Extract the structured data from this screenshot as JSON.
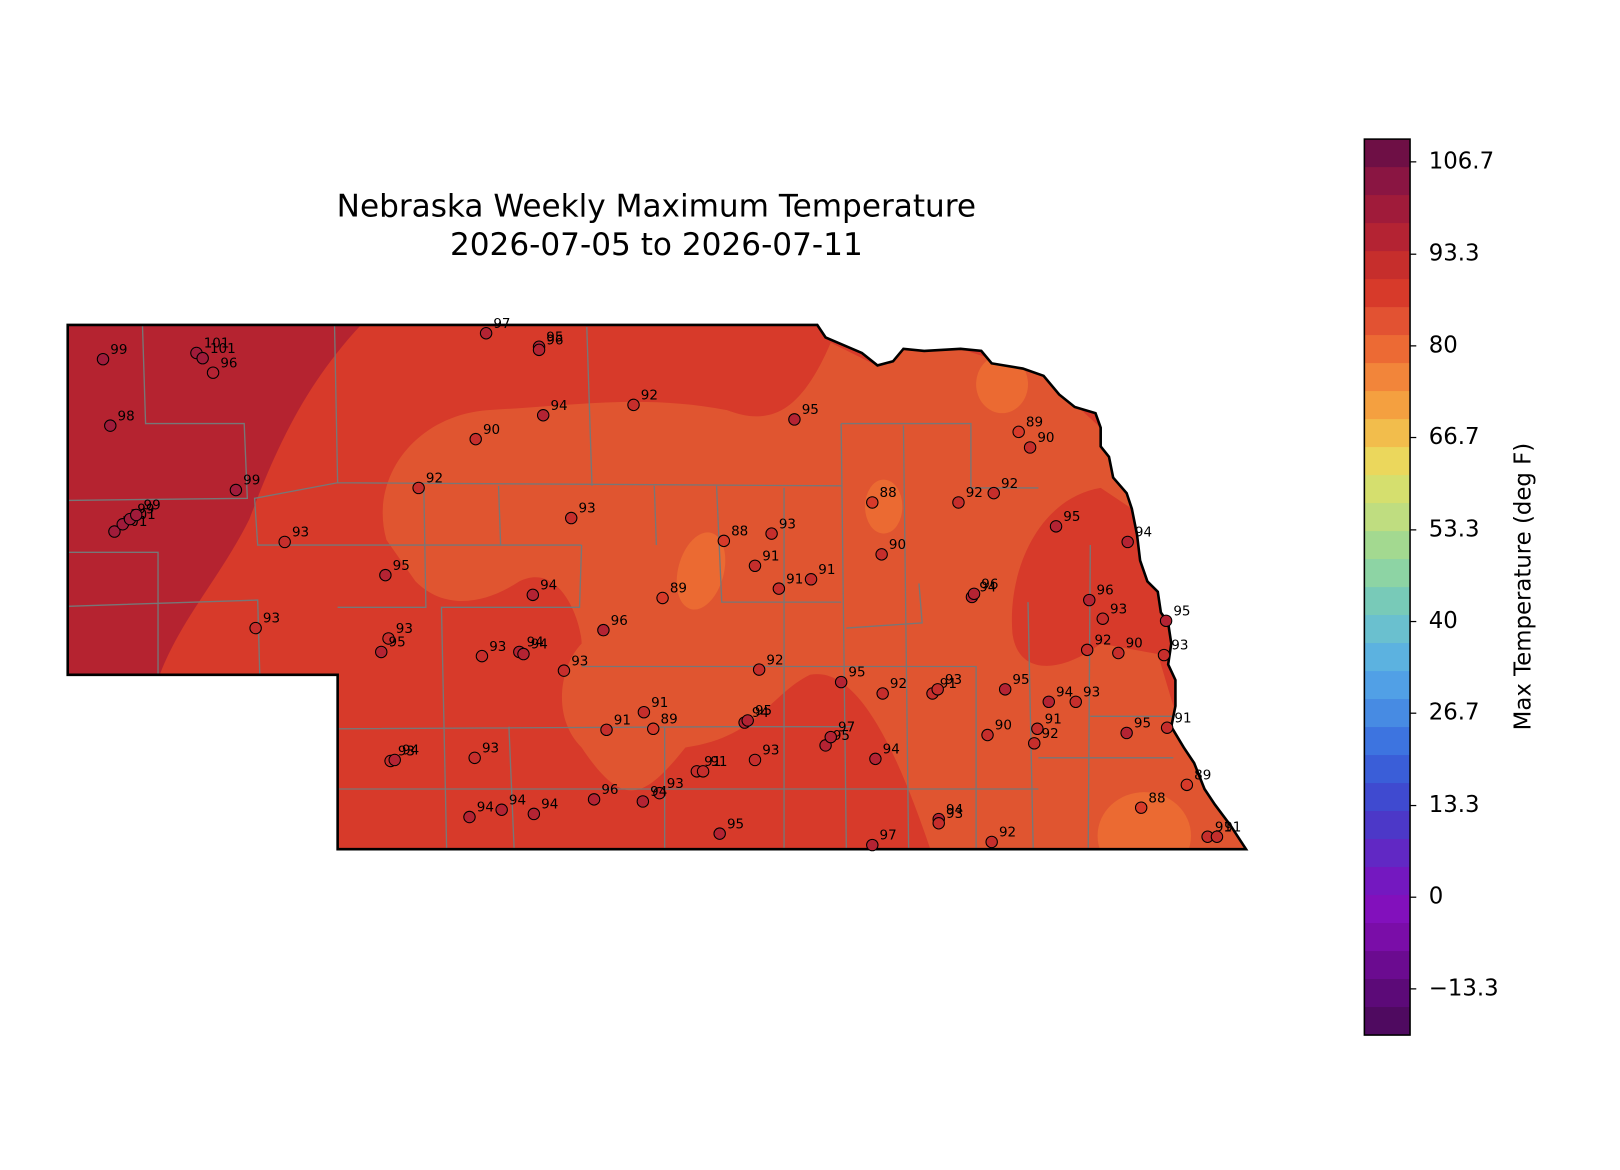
{
  "chart_data": {
    "type": "station-map",
    "title": "Nebraska Weekly Maximum Temperature",
    "subtitle": "2026-07-05 to 2026-07-11",
    "stations": {
      "values": [
        99,
        101,
        101,
        96,
        98,
        99,
        101,
        101,
        99,
        99,
        93,
        93,
        95,
        93,
        95,
        92,
        90,
        97,
        95,
        96,
        94,
        92,
        93,
        95,
        88,
        93,
        91,
        91,
        91,
        89,
        94,
        96,
        93,
        94,
        94,
        93,
        92,
        95,
        92,
        91,
        93,
        95,
        94,
        93,
        91,
        92,
        90,
        95,
        91,
        89,
        88,
        91,
        91,
        92,
        94,
        93,
        97,
        94,
        95,
        97,
        95,
        93,
        91,
        91,
        93,
        94,
        96,
        94,
        94,
        94,
        91,
        91,
        89,
        94,
        95,
        93,
        93,
        94,
        90,
        88,
        92,
        92,
        89,
        90,
        95,
        94,
        94,
        96,
        96,
        93,
        95,
        93,
        90,
        92
      ]
    },
    "colorbar": {
      "label": "Max Temperature (deg F)",
      "lim": [
        -20,
        110
      ],
      "ticks": [
        {
          "value": -13.3,
          "label": "−13.3"
        },
        0.0,
        13.3,
        26.7,
        40.0,
        53.3,
        66.7,
        80.0,
        93.3,
        106.7
      ],
      "colors": [
        "#6e0f45",
        "#8a1542",
        "#a01b3a",
        "#b42333",
        "#c62e2c",
        "#d73a2a",
        "#e25232",
        "#ec6a34",
        "#f2853a",
        "#f4a040",
        "#f2bd4c",
        "#ebd75c",
        "#d5df6e",
        "#bfdd80",
        "#a3d990",
        "#8dd4a4",
        "#78cab8",
        "#6ac0cf",
        "#5cb2e0",
        "#51a0e6",
        "#478be3",
        "#3d74e0",
        "#3a5ed8",
        "#3f4ad0",
        "#4c38c8",
        "#6128c4",
        "#7418c0",
        "#8210bc",
        "#7a0da8",
        "#6b0b90",
        "#5c0a78",
        "#4f0a60"
      ]
    }
  }
}
